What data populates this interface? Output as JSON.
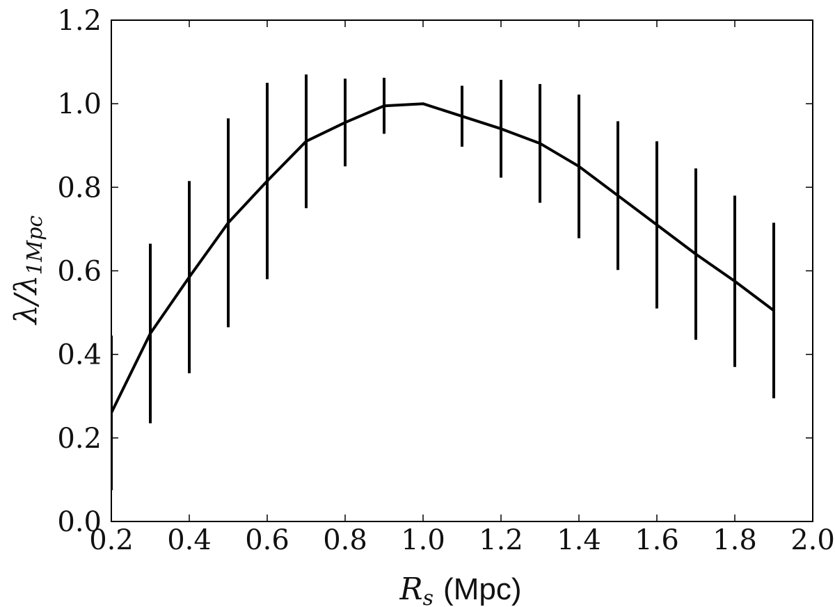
{
  "chart_data": {
    "type": "line",
    "title": "",
    "xlabel": "R_s (Mpc)",
    "xlabel_parts": {
      "symbol": "R",
      "subscript": "s",
      "unit": "(Mpc)"
    },
    "ylabel": "λ/λ_1Mpc",
    "ylabel_parts": {
      "symbol": "λ/λ",
      "subscript": "1Mpc"
    },
    "xlim": [
      0.2,
      2.0
    ],
    "ylim": [
      0.0,
      1.2
    ],
    "xticks": [
      "0.2",
      "0.4",
      "0.6",
      "0.8",
      "1.0",
      "1.2",
      "1.4",
      "1.6",
      "1.8",
      "2.0"
    ],
    "yticks": [
      "0.0",
      "0.2",
      "0.4",
      "0.6",
      "0.8",
      "1.0",
      "1.2"
    ],
    "grid": false,
    "series": [
      {
        "x": [
          0.2,
          0.3,
          0.4,
          0.5,
          0.6,
          0.7,
          0.8,
          0.9,
          1.0,
          1.1,
          1.2,
          1.3,
          1.4,
          1.5,
          1.6,
          1.7,
          1.8,
          1.9
        ],
        "y": [
          0.26,
          0.45,
          0.585,
          0.715,
          0.815,
          0.91,
          0.955,
          0.995,
          1.0,
          0.97,
          0.94,
          0.905,
          0.85,
          0.78,
          0.71,
          0.64,
          0.575,
          0.505
        ],
        "yerr": [
          0.185,
          0.215,
          0.23,
          0.25,
          0.235,
          0.16,
          0.105,
          0.067,
          0.0,
          0.073,
          0.117,
          0.142,
          0.172,
          0.178,
          0.2,
          0.205,
          0.205,
          0.21
        ],
        "color": "#000000"
      }
    ]
  }
}
